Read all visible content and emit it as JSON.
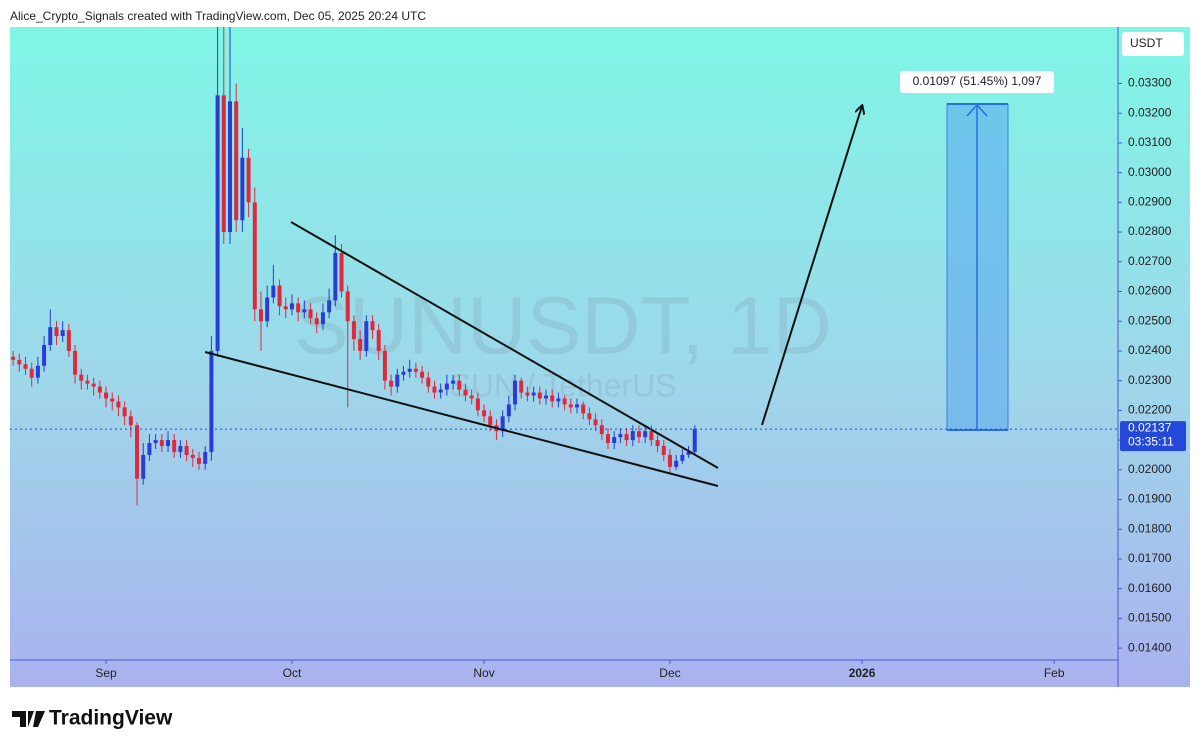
{
  "header": "Alice_Crypto_Signals created with TradingView.com, Dec 05, 2025 20:24 UTC",
  "footer": {
    "brand": "TradingView"
  },
  "chart_data": {
    "type": "candlestick",
    "watermark": "SUNUSDT, 1D",
    "watermark_subtitle": "SUN / TetherUS",
    "currency": "USDT",
    "up_color": "#2a3bd6",
    "down_color": "#e0283c",
    "grid": false,
    "last_price": 0.02137,
    "countdown": "03:35:11",
    "measure_label": "0.01097 (51.45%) 1,097",
    "xlim": [
      -0.5,
      178.3
    ],
    "xticks": [
      {
        "value": 15,
        "label": "Sep"
      },
      {
        "value": 45,
        "label": "Oct"
      },
      {
        "value": 76,
        "label": "Nov"
      },
      {
        "value": 106,
        "label": "Dec"
      },
      {
        "value": 137,
        "label": "2026"
      },
      {
        "value": 168,
        "label": "Feb"
      }
    ],
    "ylim": [
      0.0136,
      0.0349
    ],
    "yticks": [
      {
        "value": 0.014,
        "label": "0.01400"
      },
      {
        "value": 0.015,
        "label": "0.01500"
      },
      {
        "value": 0.016,
        "label": "0.01600"
      },
      {
        "value": 0.017,
        "label": "0.01700"
      },
      {
        "value": 0.018,
        "label": "0.01800"
      },
      {
        "value": 0.019,
        "label": "0.01900"
      },
      {
        "value": 0.02,
        "label": "0.02000"
      },
      {
        "value": 0.021,
        "label": "0.02100"
      },
      {
        "value": 0.022,
        "label": "0.02200"
      },
      {
        "value": 0.023,
        "label": "0.02300"
      },
      {
        "value": 0.024,
        "label": "0.02400"
      },
      {
        "value": 0.025,
        "label": "0.02500"
      },
      {
        "value": 0.026,
        "label": "0.02600"
      },
      {
        "value": 0.027,
        "label": "0.02700"
      },
      {
        "value": 0.028,
        "label": "0.02800"
      },
      {
        "value": 0.029,
        "label": "0.02900"
      },
      {
        "value": 0.03,
        "label": "0.03000"
      },
      {
        "value": 0.031,
        "label": "0.03100"
      },
      {
        "value": 0.032,
        "label": "0.03200"
      },
      {
        "value": 0.033,
        "label": "0.03300"
      }
    ],
    "open": [
      0.0238,
      0.0237,
      0.02355,
      0.0234,
      0.0231,
      0.0235,
      0.0242,
      0.0248,
      0.0245,
      0.0247,
      0.024,
      0.0232,
      0.023,
      0.0229,
      0.0228,
      0.0226,
      0.0224,
      0.0223,
      0.0221,
      0.0218,
      0.0215,
      0.0197,
      0.0205,
      0.0209,
      0.021,
      0.0208,
      0.021,
      0.0206,
      0.0208,
      0.0205,
      0.0204,
      0.0202,
      0.0206,
      0.024,
      0.0326,
      0.028,
      0.0324,
      0.0284,
      0.0305,
      0.029,
      0.0254,
      0.025,
      0.0258,
      0.0262,
      0.0255,
      0.0254,
      0.0256,
      0.0253,
      0.0254,
      0.0251,
      0.0249,
      0.0253,
      0.0257,
      0.0273,
      0.026,
      0.025,
      0.0244,
      0.024,
      0.025,
      0.0247,
      0.024,
      0.023,
      0.0228,
      0.0232,
      0.0233,
      0.0234,
      0.0233,
      0.0231,
      0.0228,
      0.0226,
      0.0227,
      0.0229,
      0.023,
      0.0227,
      0.0225,
      0.0224,
      0.022,
      0.0218,
      0.0215,
      0.0213,
      0.0218,
      0.0222,
      0.023,
      0.0226,
      0.0225,
      0.0226,
      0.0224,
      0.0225,
      0.0223,
      0.0224,
      0.0222,
      0.0221,
      0.0222,
      0.0219,
      0.0217,
      0.0215,
      0.0212,
      0.0209,
      0.0211,
      0.0212,
      0.021,
      0.0213,
      0.0211,
      0.0213,
      0.021,
      0.0208,
      0.0205,
      0.0201,
      0.0203,
      0.0205,
      0.0206
    ],
    "high": [
      0.024,
      0.0239,
      0.0238,
      0.0236,
      0.0238,
      0.0245,
      0.0254,
      0.025,
      0.025,
      0.0249,
      0.0242,
      0.0234,
      0.0232,
      0.0231,
      0.023,
      0.0228,
      0.0226,
      0.0225,
      0.0223,
      0.022,
      0.0216,
      0.0209,
      0.0212,
      0.0212,
      0.0212,
      0.0213,
      0.0212,
      0.021,
      0.021,
      0.0207,
      0.0206,
      0.0208,
      0.0245,
      0.0349,
      0.0349,
      0.0349,
      0.033,
      0.0315,
      0.0308,
      0.0295,
      0.026,
      0.0262,
      0.0269,
      0.0264,
      0.0258,
      0.0259,
      0.0258,
      0.0257,
      0.0256,
      0.0253,
      0.0256,
      0.0261,
      0.0279,
      0.0276,
      0.0262,
      0.0252,
      0.0247,
      0.0252,
      0.0252,
      0.0249,
      0.0242,
      0.0232,
      0.0234,
      0.0235,
      0.0237,
      0.0236,
      0.0235,
      0.0233,
      0.023,
      0.0229,
      0.0232,
      0.0232,
      0.0232,
      0.0229,
      0.0227,
      0.0226,
      0.0222,
      0.022,
      0.0217,
      0.022,
      0.0225,
      0.0232,
      0.0231,
      0.0228,
      0.0228,
      0.0228,
      0.0227,
      0.0227,
      0.0226,
      0.0225,
      0.0224,
      0.0224,
      0.0223,
      0.0221,
      0.0219,
      0.0217,
      0.0214,
      0.0213,
      0.0214,
      0.0214,
      0.0215,
      0.0215,
      0.0215,
      0.0215,
      0.0212,
      0.021,
      0.0207,
      0.0205,
      0.0207,
      0.0208,
      0.0215
    ],
    "low": [
      0.0235,
      0.0233,
      0.0232,
      0.0228,
      0.0229,
      0.0233,
      0.024,
      0.0242,
      0.0243,
      0.0238,
      0.0229,
      0.0227,
      0.0227,
      0.0225,
      0.0224,
      0.0221,
      0.022,
      0.0218,
      0.0215,
      0.0211,
      0.0188,
      0.0195,
      0.0203,
      0.0207,
      0.0206,
      0.0206,
      0.0204,
      0.0204,
      0.0203,
      0.0201,
      0.02,
      0.02,
      0.0203,
      0.0238,
      0.0276,
      0.0276,
      0.028,
      0.028,
      0.0285,
      0.025,
      0.024,
      0.0248,
      0.0256,
      0.0252,
      0.0251,
      0.0252,
      0.025,
      0.0251,
      0.0249,
      0.0246,
      0.0247,
      0.0251,
      0.0255,
      0.0258,
      0.0221,
      0.024,
      0.0237,
      0.0238,
      0.0244,
      0.0237,
      0.0227,
      0.0225,
      0.0226,
      0.023,
      0.0231,
      0.0231,
      0.0229,
      0.0226,
      0.0224,
      0.0224,
      0.0225,
      0.0227,
      0.0225,
      0.0223,
      0.0222,
      0.0218,
      0.0216,
      0.0213,
      0.021,
      0.0211,
      0.0216,
      0.022,
      0.0224,
      0.0223,
      0.0223,
      0.0222,
      0.0222,
      0.0221,
      0.0221,
      0.022,
      0.0219,
      0.0219,
      0.0217,
      0.0215,
      0.0213,
      0.021,
      0.0207,
      0.0207,
      0.0209,
      0.0208,
      0.0208,
      0.0209,
      0.0209,
      0.0208,
      0.0206,
      0.0203,
      0.0199,
      0.02,
      0.0202,
      0.0204,
      0.0205
    ],
    "close": [
      0.0237,
      0.02355,
      0.0234,
      0.0231,
      0.0235,
      0.0242,
      0.0248,
      0.0245,
      0.0247,
      0.024,
      0.0232,
      0.023,
      0.0229,
      0.0228,
      0.0226,
      0.0224,
      0.0223,
      0.0221,
      0.0218,
      0.0215,
      0.0197,
      0.0205,
      0.0209,
      0.021,
      0.0208,
      0.021,
      0.0206,
      0.0208,
      0.0205,
      0.0204,
      0.0202,
      0.0206,
      0.024,
      0.0326,
      0.028,
      0.0324,
      0.0284,
      0.0305,
      0.029,
      0.0254,
      0.025,
      0.0258,
      0.0262,
      0.0255,
      0.0254,
      0.0256,
      0.0253,
      0.0254,
      0.0251,
      0.0249,
      0.0253,
      0.0257,
      0.0273,
      0.026,
      0.025,
      0.0244,
      0.024,
      0.025,
      0.0247,
      0.024,
      0.023,
      0.0228,
      0.0232,
      0.0233,
      0.0234,
      0.0233,
      0.0231,
      0.0228,
      0.0226,
      0.0227,
      0.0229,
      0.023,
      0.0227,
      0.0225,
      0.0224,
      0.022,
      0.0218,
      0.0215,
      0.0213,
      0.0218,
      0.0222,
      0.023,
      0.0226,
      0.0225,
      0.0226,
      0.0224,
      0.0225,
      0.0223,
      0.0224,
      0.0222,
      0.0221,
      0.0222,
      0.0219,
      0.0217,
      0.0215,
      0.0212,
      0.0209,
      0.0211,
      0.0212,
      0.021,
      0.0213,
      0.0211,
      0.0213,
      0.021,
      0.0208,
      0.0205,
      0.0201,
      0.0203,
      0.0205,
      0.0206,
      0.02137
    ]
  }
}
